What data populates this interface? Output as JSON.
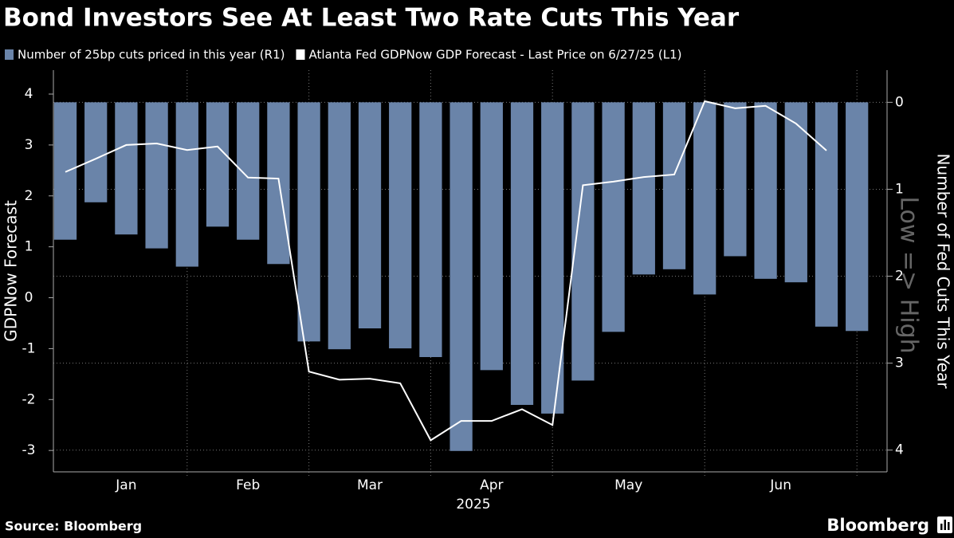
{
  "chart_data": {
    "type": "combo",
    "title": "Bond Investors See At Least Two Rate Cuts This Year",
    "categories": [
      null,
      null,
      null,
      null,
      null,
      null,
      null,
      null,
      null,
      null,
      null,
      null,
      null,
      null,
      null,
      null,
      null,
      null,
      null,
      null,
      null,
      null,
      null,
      null,
      null,
      null,
      null
    ],
    "x_groups": [
      {
        "value": 2,
        "label": "Jan"
      },
      {
        "value": 6,
        "label": "Feb"
      },
      {
        "value": 10,
        "label": "Mar"
      },
      {
        "value": 14,
        "label": "Apr"
      },
      {
        "value": 18.5,
        "label": "May"
      },
      {
        "value": 23.5,
        "label": "Jun"
      }
    ],
    "x_separators": [
      4,
      8,
      12,
      16,
      21,
      26
    ],
    "x_year_label": "2025",
    "series": [
      {
        "name": "Number of 25bp cuts priced in this year (R1)",
        "type": "bar",
        "axis": "y2",
        "color": "#6a84a9",
        "values": [
          1.58,
          1.15,
          1.52,
          1.68,
          1.89,
          1.43,
          1.58,
          1.86,
          2.75,
          2.84,
          2.6,
          2.83,
          2.93,
          4.01,
          3.08,
          3.48,
          3.58,
          3.2,
          2.64,
          1.98,
          1.92,
          2.21,
          1.77,
          2.03,
          2.07,
          2.58,
          2.63
        ]
      },
      {
        "name": "Atlanta Fed GDPNow GDP Forecast - Last Price on 6/27/25 (L1)",
        "type": "line",
        "axis": "y",
        "color": "#ffffff",
        "values": [
          2.47,
          2.73,
          3.0,
          3.03,
          2.9,
          2.97,
          2.36,
          2.34,
          -1.45,
          -1.61,
          -1.59,
          -1.68,
          -2.8,
          -2.42,
          -2.42,
          -2.19,
          -2.5,
          2.21,
          2.28,
          2.37,
          2.42,
          3.86,
          3.72,
          3.77,
          3.42,
          2.89,
          null
        ]
      }
    ],
    "ylabel": "GDPNow Forecast",
    "ylim": [
      -3.42,
      4.47
    ],
    "yticks": [
      -3,
      -2,
      -1,
      0,
      1,
      2,
      3,
      4
    ],
    "y2label": "Number of Fed Cuts This Year",
    "y2lim": [
      -0.37,
      4.25
    ],
    "y2ticks": [
      0,
      1,
      2,
      3,
      4
    ],
    "y2_inverted": true,
    "grid": true,
    "annotation": "Low => High",
    "source": "Source: Bloomberg",
    "brand": "Bloomberg"
  }
}
